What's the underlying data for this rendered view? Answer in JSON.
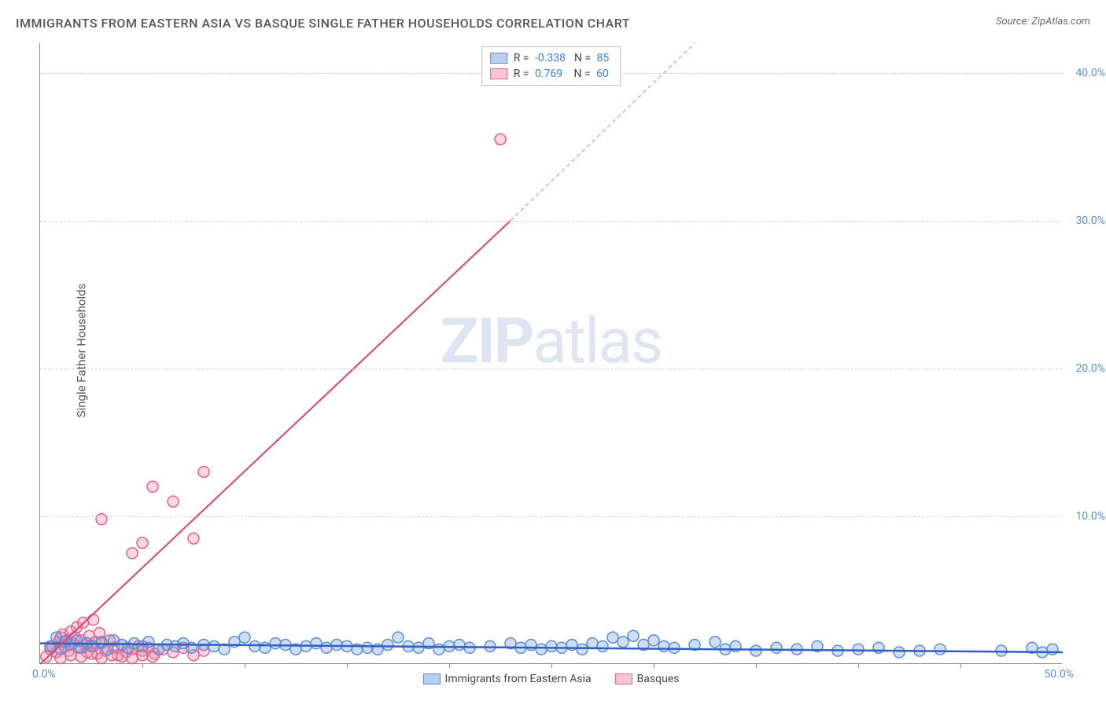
{
  "title": "IMMIGRANTS FROM EASTERN ASIA VS BASQUE SINGLE FATHER HOUSEHOLDS CORRELATION CHART",
  "source": "Source: ZipAtlas.com",
  "watermark_bold": "ZIP",
  "watermark_light": "atlas",
  "y_axis_label": "Single Father Households",
  "chart": {
    "type": "scatter",
    "xlim": [
      0,
      50
    ],
    "ylim": [
      0,
      42
    ],
    "x_origin_label": "0.0%",
    "x_max_label": "50.0%",
    "y_ticks": [
      {
        "value": 10,
        "label": "10.0%"
      },
      {
        "value": 20,
        "label": "20.0%"
      },
      {
        "value": 30,
        "label": "30.0%"
      },
      {
        "value": 40,
        "label": "40.0%"
      }
    ],
    "x_tick_positions": [
      5,
      10,
      15,
      20,
      25,
      30,
      35,
      40,
      45
    ],
    "background_color": "#ffffff",
    "grid_color": "#cccccc",
    "marker_radius": 7,
    "marker_stroke_width": 1.5,
    "series": [
      {
        "name": "Immigrants from Eastern Asia",
        "fill_color": "rgba(120,160,220,0.35)",
        "stroke_color": "#5b8dd6",
        "r_value": "-0.338",
        "n_value": "85",
        "trendline": {
          "x1": 0,
          "y1": 1.4,
          "x2": 50,
          "y2": 0.8,
          "color": "#2f5fc4",
          "width": 2.5,
          "dash": "none"
        },
        "points": [
          [
            0.5,
            1.2
          ],
          [
            0.8,
            1.8
          ],
          [
            1.0,
            1.0
          ],
          [
            1.2,
            1.5
          ],
          [
            1.5,
            1.3
          ],
          [
            1.8,
            1.6
          ],
          [
            2.0,
            1.1
          ],
          [
            2.3,
            1.4
          ],
          [
            2.6,
            1.2
          ],
          [
            3.0,
            1.5
          ],
          [
            3.3,
            1.0
          ],
          [
            3.6,
            1.6
          ],
          [
            4.0,
            1.3
          ],
          [
            4.3,
            1.1
          ],
          [
            4.6,
            1.4
          ],
          [
            5.0,
            1.2
          ],
          [
            5.3,
            1.5
          ],
          [
            5.8,
            1.0
          ],
          [
            6.2,
            1.3
          ],
          [
            6.6,
            1.2
          ],
          [
            7.0,
            1.4
          ],
          [
            7.4,
            1.1
          ],
          [
            8.0,
            1.3
          ],
          [
            8.5,
            1.2
          ],
          [
            9.0,
            1.0
          ],
          [
            9.5,
            1.5
          ],
          [
            10.0,
            1.8
          ],
          [
            10.5,
            1.2
          ],
          [
            11.0,
            1.1
          ],
          [
            11.5,
            1.4
          ],
          [
            12.0,
            1.3
          ],
          [
            12.5,
            1.0
          ],
          [
            13.0,
            1.2
          ],
          [
            13.5,
            1.4
          ],
          [
            14.0,
            1.1
          ],
          [
            14.5,
            1.3
          ],
          [
            15.0,
            1.2
          ],
          [
            15.5,
            1.0
          ],
          [
            16.0,
            1.1
          ],
          [
            16.5,
            1.0
          ],
          [
            17.0,
            1.3
          ],
          [
            17.5,
            1.8
          ],
          [
            18.0,
            1.2
          ],
          [
            18.5,
            1.1
          ],
          [
            19.0,
            1.4
          ],
          [
            19.5,
            1.0
          ],
          [
            20.0,
            1.2
          ],
          [
            20.5,
            1.3
          ],
          [
            21.0,
            1.1
          ],
          [
            22.0,
            1.2
          ],
          [
            23.0,
            1.4
          ],
          [
            23.5,
            1.1
          ],
          [
            24.0,
            1.3
          ],
          [
            24.5,
            1.0
          ],
          [
            25.0,
            1.2
          ],
          [
            25.5,
            1.1
          ],
          [
            26.0,
            1.3
          ],
          [
            26.5,
            1.0
          ],
          [
            27.0,
            1.4
          ],
          [
            27.5,
            1.2
          ],
          [
            28.0,
            1.8
          ],
          [
            28.5,
            1.5
          ],
          [
            29.0,
            1.9
          ],
          [
            29.5,
            1.3
          ],
          [
            30.0,
            1.6
          ],
          [
            30.5,
            1.2
          ],
          [
            31.0,
            1.1
          ],
          [
            32.0,
            1.3
          ],
          [
            33.0,
            1.5
          ],
          [
            33.5,
            1.0
          ],
          [
            34.0,
            1.2
          ],
          [
            35.0,
            0.9
          ],
          [
            36.0,
            1.1
          ],
          [
            37.0,
            1.0
          ],
          [
            38.0,
            1.2
          ],
          [
            39.0,
            0.9
          ],
          [
            40.0,
            1.0
          ],
          [
            41.0,
            1.1
          ],
          [
            42.0,
            0.8
          ],
          [
            43.0,
            0.9
          ],
          [
            44.0,
            1.0
          ],
          [
            47.0,
            0.9
          ],
          [
            48.5,
            1.1
          ],
          [
            49.0,
            0.8
          ],
          [
            49.5,
            1.0
          ]
        ]
      },
      {
        "name": "Basques",
        "fill_color": "rgba(240,140,170,0.35)",
        "stroke_color": "#e85f8a",
        "r_value": "0.769",
        "n_value": "60",
        "trendline": {
          "x1": 0,
          "y1": 0,
          "x2": 23,
          "y2": 30,
          "color": "#e0416f",
          "width": 2,
          "dash": "none"
        },
        "trendline_ext": {
          "x1": 23,
          "y1": 30,
          "x2": 32,
          "y2": 42,
          "color": "#f0a0b8",
          "width": 1.5,
          "dash": "5,4"
        },
        "points": [
          [
            0.3,
            0.5
          ],
          [
            0.5,
            1.0
          ],
          [
            0.6,
            1.2
          ],
          [
            0.8,
            0.8
          ],
          [
            0.9,
            1.5
          ],
          [
            1.0,
            1.8
          ],
          [
            1.1,
            2.0
          ],
          [
            1.2,
            1.2
          ],
          [
            1.3,
            1.6
          ],
          [
            1.4,
            0.9
          ],
          [
            1.5,
            2.2
          ],
          [
            1.6,
            1.4
          ],
          [
            1.7,
            1.8
          ],
          [
            1.8,
            2.5
          ],
          [
            1.9,
            1.1
          ],
          [
            2.0,
            1.6
          ],
          [
            2.1,
            2.8
          ],
          [
            2.2,
            1.3
          ],
          [
            2.3,
            0.8
          ],
          [
            2.4,
            1.9
          ],
          [
            2.5,
            1.2
          ],
          [
            2.6,
            3.0
          ],
          [
            2.7,
            1.5
          ],
          [
            2.8,
            0.7
          ],
          [
            2.9,
            2.1
          ],
          [
            3.0,
            1.4
          ],
          [
            3.2,
            0.9
          ],
          [
            3.4,
            1.6
          ],
          [
            3.6,
            1.1
          ],
          [
            3.8,
            0.6
          ],
          [
            4.0,
            1.3
          ],
          [
            4.2,
            0.8
          ],
          [
            4.5,
            1.0
          ],
          [
            4.8,
            1.2
          ],
          [
            5.0,
            0.9
          ],
          [
            5.3,
            1.1
          ],
          [
            5.6,
            0.7
          ],
          [
            6.0,
            1.0
          ],
          [
            6.5,
            0.8
          ],
          [
            7.0,
            1.1
          ],
          [
            7.5,
            0.6
          ],
          [
            8.0,
            0.9
          ],
          [
            3.0,
            9.8
          ],
          [
            4.5,
            7.5
          ],
          [
            5.0,
            8.2
          ],
          [
            5.5,
            12.0
          ],
          [
            6.5,
            11.0
          ],
          [
            7.5,
            8.5
          ],
          [
            8.0,
            13.0
          ],
          [
            22.5,
            35.5
          ],
          [
            1.0,
            0.4
          ],
          [
            1.5,
            0.6
          ],
          [
            2.0,
            0.5
          ],
          [
            2.5,
            0.7
          ],
          [
            3.0,
            0.4
          ],
          [
            3.5,
            0.6
          ],
          [
            4.0,
            0.5
          ],
          [
            4.5,
            0.4
          ],
          [
            5.0,
            0.6
          ],
          [
            5.5,
            0.5
          ]
        ]
      }
    ]
  },
  "legend_bottom": [
    {
      "label": "Immigrants from Eastern Asia",
      "fill": "rgba(120,160,220,0.5)",
      "stroke": "#5b8dd6"
    },
    {
      "label": "Basques",
      "fill": "rgba(240,140,170,0.5)",
      "stroke": "#e85f8a"
    }
  ]
}
